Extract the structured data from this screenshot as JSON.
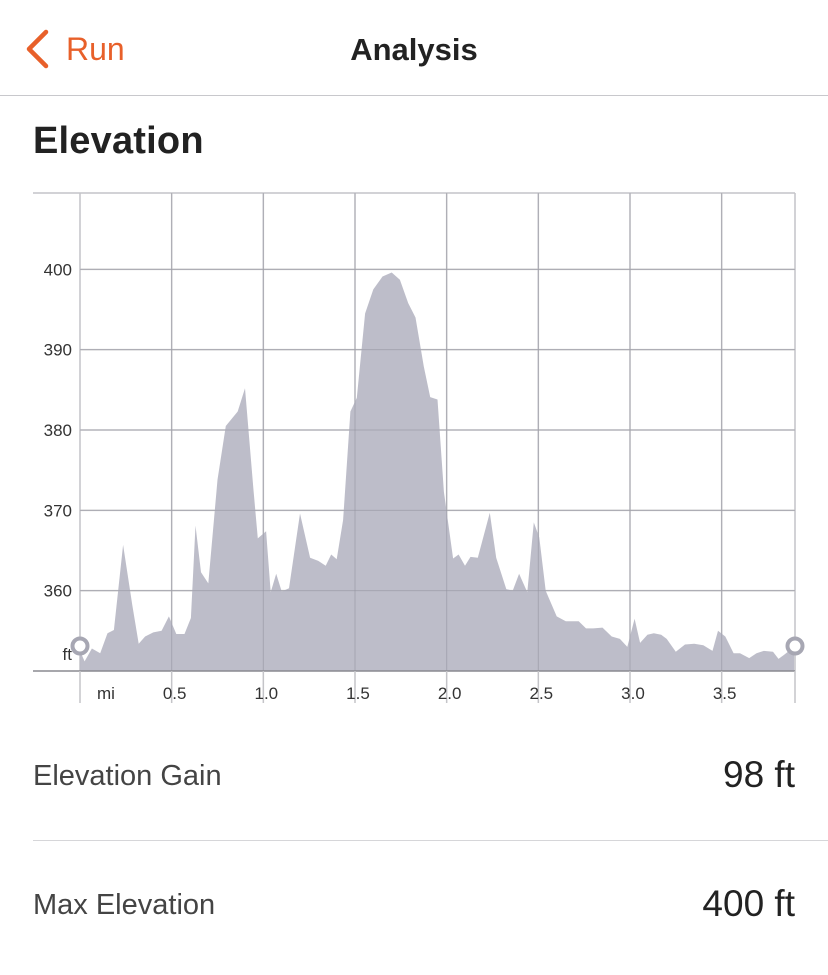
{
  "nav": {
    "back_label": "Run",
    "title": "Analysis"
  },
  "section": {
    "title": "Elevation"
  },
  "stats": [
    {
      "label": "Elevation Gain",
      "value": "98 ft"
    },
    {
      "label": "Max Elevation",
      "value": "400 ft"
    }
  ],
  "colors": {
    "accent": "#e8602a",
    "area": "#b9b9c6",
    "grid": "#c4c4c8"
  },
  "chart_data": {
    "type": "area",
    "title": "",
    "xlabel": "mi",
    "ylabel": "ft",
    "xlim": [
      0,
      3.9
    ],
    "ylim": [
      350,
      409.5
    ],
    "x_ticks": [
      0.5,
      1.0,
      1.5,
      2.0,
      2.5,
      3.0,
      3.5
    ],
    "x_tick_labels": [
      "0.5",
      "1.0",
      "1.5",
      "2.0",
      "2.5",
      "3.0",
      "3.5"
    ],
    "y_ticks": [
      360,
      370,
      380,
      390,
      400
    ],
    "y_tick_labels": [
      "360",
      "370",
      "380",
      "390",
      "400"
    ],
    "grid": true,
    "series": [
      {
        "x": [
          0,
          0.025,
          0.065,
          0.11,
          0.15,
          0.185,
          0.235,
          0.285,
          0.32,
          0.355,
          0.4,
          0.445,
          0.485,
          0.525,
          0.57,
          0.605,
          0.63,
          0.66,
          0.7,
          0.75,
          0.795,
          0.86,
          0.9,
          0.945,
          0.97,
          1.015,
          1.04,
          1.07,
          1.1,
          1.14,
          1.2,
          1.255,
          1.3,
          1.34,
          1.37,
          1.4,
          1.435,
          1.475,
          1.51,
          1.555,
          1.6,
          1.65,
          1.7,
          1.745,
          1.79,
          1.83,
          1.875,
          1.91,
          1.95,
          1.985,
          2.035,
          2.065,
          2.1,
          2.13,
          2.17,
          2.235,
          2.27,
          2.325,
          2.36,
          2.395,
          2.44,
          2.475,
          2.505,
          2.54,
          2.6,
          2.65,
          2.68,
          2.72,
          2.76,
          2.8,
          2.85,
          2.9,
          2.945,
          2.985,
          3.025,
          3.055,
          3.095,
          3.13,
          3.17,
          3.2,
          3.25,
          3.3,
          3.35,
          3.4,
          3.45,
          3.48,
          3.52,
          3.565,
          3.6,
          3.65,
          3.69,
          3.73,
          3.78,
          3.81,
          3.84,
          3.895
        ],
        "y": [
          352.5,
          351.2,
          352.8,
          352.2,
          354.7,
          355.1,
          365.7,
          358.2,
          353.4,
          354.3,
          354.8,
          355.0,
          356.8,
          354.6,
          354.6,
          356.6,
          368.1,
          362.3,
          360.9,
          373.8,
          380.5,
          382.3,
          385.2,
          372.8,
          366.5,
          367.4,
          359.8,
          362.1,
          359.9,
          360.3,
          369.6,
          364.1,
          363.7,
          363.1,
          364.5,
          363.9,
          368.8,
          382.3,
          384.0,
          394.5,
          397.5,
          399.1,
          399.6,
          398.7,
          395.8,
          394.0,
          387.9,
          384.1,
          383.8,
          372.3,
          364.0,
          364.5,
          363.1,
          364.2,
          364.1,
          369.7,
          364.1,
          360.2,
          360.0,
          362.1,
          359.8,
          368.5,
          366.6,
          360.0,
          356.8,
          356.2,
          356.2,
          356.2,
          355.3,
          355.3,
          355.4,
          354.3,
          354.0,
          353.0,
          356.5,
          353.5,
          354.5,
          354.7,
          354.5,
          354.0,
          352.4,
          353.3,
          353.4,
          353.2,
          352.5,
          355.0,
          354.3,
          352.2,
          352.2,
          351.6,
          352.2,
          352.5,
          352.4,
          351.5,
          352.0,
          353.0
        ]
      }
    ]
  }
}
